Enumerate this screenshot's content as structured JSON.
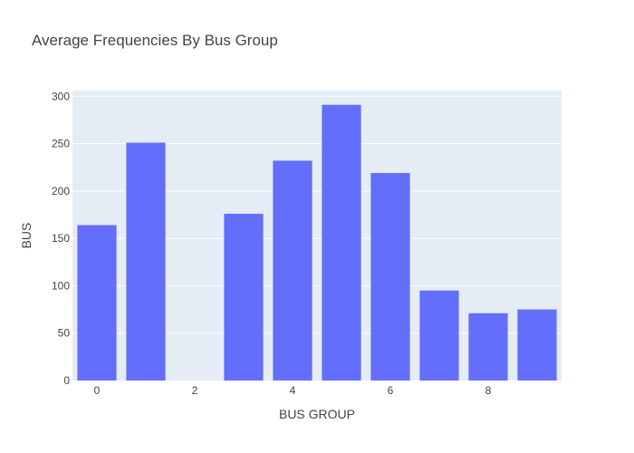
{
  "chart_data": {
    "type": "bar",
    "title": "Average Frequencies By Bus Group",
    "xlabel": "BUS GROUP",
    "ylabel": "BUS",
    "x": [
      0,
      1,
      2,
      3,
      4,
      5,
      6,
      7,
      8,
      9
    ],
    "values": [
      164,
      251,
      0,
      176,
      232,
      291,
      219,
      95,
      71,
      75
    ],
    "xticks": [
      "0",
      "2",
      "4",
      "6",
      "8"
    ],
    "xtick_values": [
      0,
      2,
      4,
      6,
      8
    ],
    "yticks": [
      "0",
      "50",
      "100",
      "150",
      "200",
      "250",
      "300"
    ],
    "ytick_values": [
      0,
      50,
      100,
      150,
      200,
      250,
      300
    ],
    "xlim": [
      -0.5,
      9.5
    ],
    "ylim": [
      0,
      306
    ],
    "grid": true,
    "colors": {
      "bar": "#636efa",
      "plot_bg": "#e5ecf6",
      "grid": "#ffffff",
      "text": "#444444"
    }
  }
}
